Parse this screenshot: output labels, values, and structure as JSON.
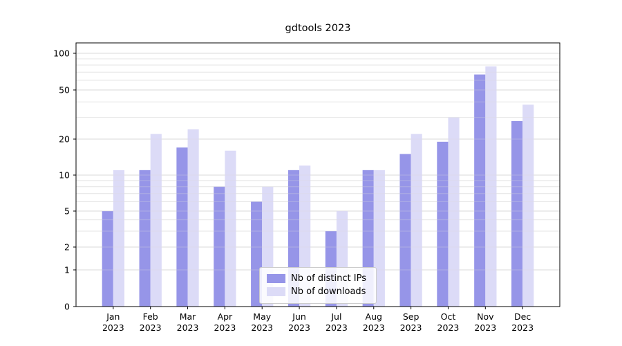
{
  "title": "gdtools 2023",
  "chart_data": {
    "type": "bar",
    "title": "gdtools 2023",
    "categories": [
      "Jan 2023",
      "Feb 2023",
      "Mar 2023",
      "Apr 2023",
      "May 2023",
      "Jun 2023",
      "Jul 2023",
      "Aug 2023",
      "Sep 2023",
      "Oct 2023",
      "Nov 2023",
      "Dec 2023"
    ],
    "month_labels": [
      "Jan",
      "Feb",
      "Mar",
      "Apr",
      "May",
      "Jun",
      "Jul",
      "Aug",
      "Sep",
      "Oct",
      "Nov",
      "Dec"
    ],
    "year_label": "2023",
    "series": [
      {
        "name": "Nb of distinct IPs",
        "color": "#9695e8",
        "values": [
          5,
          11,
          17,
          8,
          6,
          11,
          3,
          11,
          15,
          19,
          67,
          28
        ]
      },
      {
        "name": "Nb of downloads",
        "color": "#dcdbf7",
        "values": [
          11,
          22,
          24,
          16,
          8,
          12,
          5,
          11,
          22,
          30,
          78,
          38
        ]
      }
    ],
    "yscale": "symlog",
    "yticks": [
      0,
      1,
      2,
      5,
      10,
      20,
      50,
      100
    ],
    "minor_yticks": [
      3,
      4,
      6,
      7,
      8,
      9,
      30,
      40,
      60,
      70,
      80,
      90
    ],
    "ylim": [
      0,
      115
    ],
    "grid": true,
    "legend_position": "lower center",
    "colors": {
      "major_grid": "#d9d9d9",
      "minor_grid": "#ebebeb",
      "spine": "#000000"
    }
  }
}
